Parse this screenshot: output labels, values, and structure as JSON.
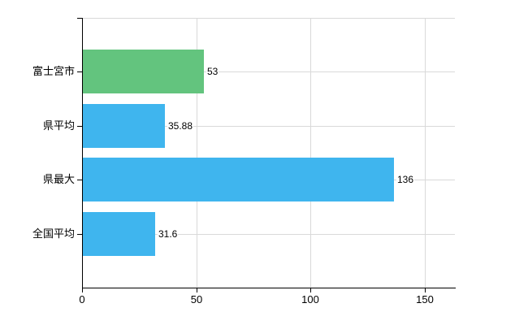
{
  "chart_data": {
    "type": "bar",
    "orientation": "horizontal",
    "title": "",
    "categories": [
      "富士宮市",
      "県平均",
      "県最大",
      "全国平均"
    ],
    "series": [
      {
        "name": "",
        "values": [
          53,
          35.88,
          136,
          31.6
        ],
        "value_labels": [
          "53",
          "35.88",
          "136",
          "31.6"
        ],
        "bar_colors": [
          "#63c47e",
          "#3fb5ee",
          "#3fb5ee",
          "#3fb5ee"
        ]
      }
    ],
    "xlabel": "",
    "ylabel": "",
    "x_ticks": [
      0,
      50,
      100,
      150
    ],
    "x_tick_labels": [
      "0",
      "50",
      "100",
      "150"
    ],
    "xlim": [
      0,
      163.2
    ],
    "grid": true,
    "gridline_positions_note": "vertical gridlines at x ticks 50/100/150; horizontal gridlines at plot top and at each category center",
    "legend": false,
    "colors": {
      "bar_green": "#63c47e",
      "bar_blue": "#3fb5ee",
      "grid": "#d9d9d9",
      "axis": "#000000",
      "text": "#000000",
      "background": "#ffffff"
    }
  }
}
